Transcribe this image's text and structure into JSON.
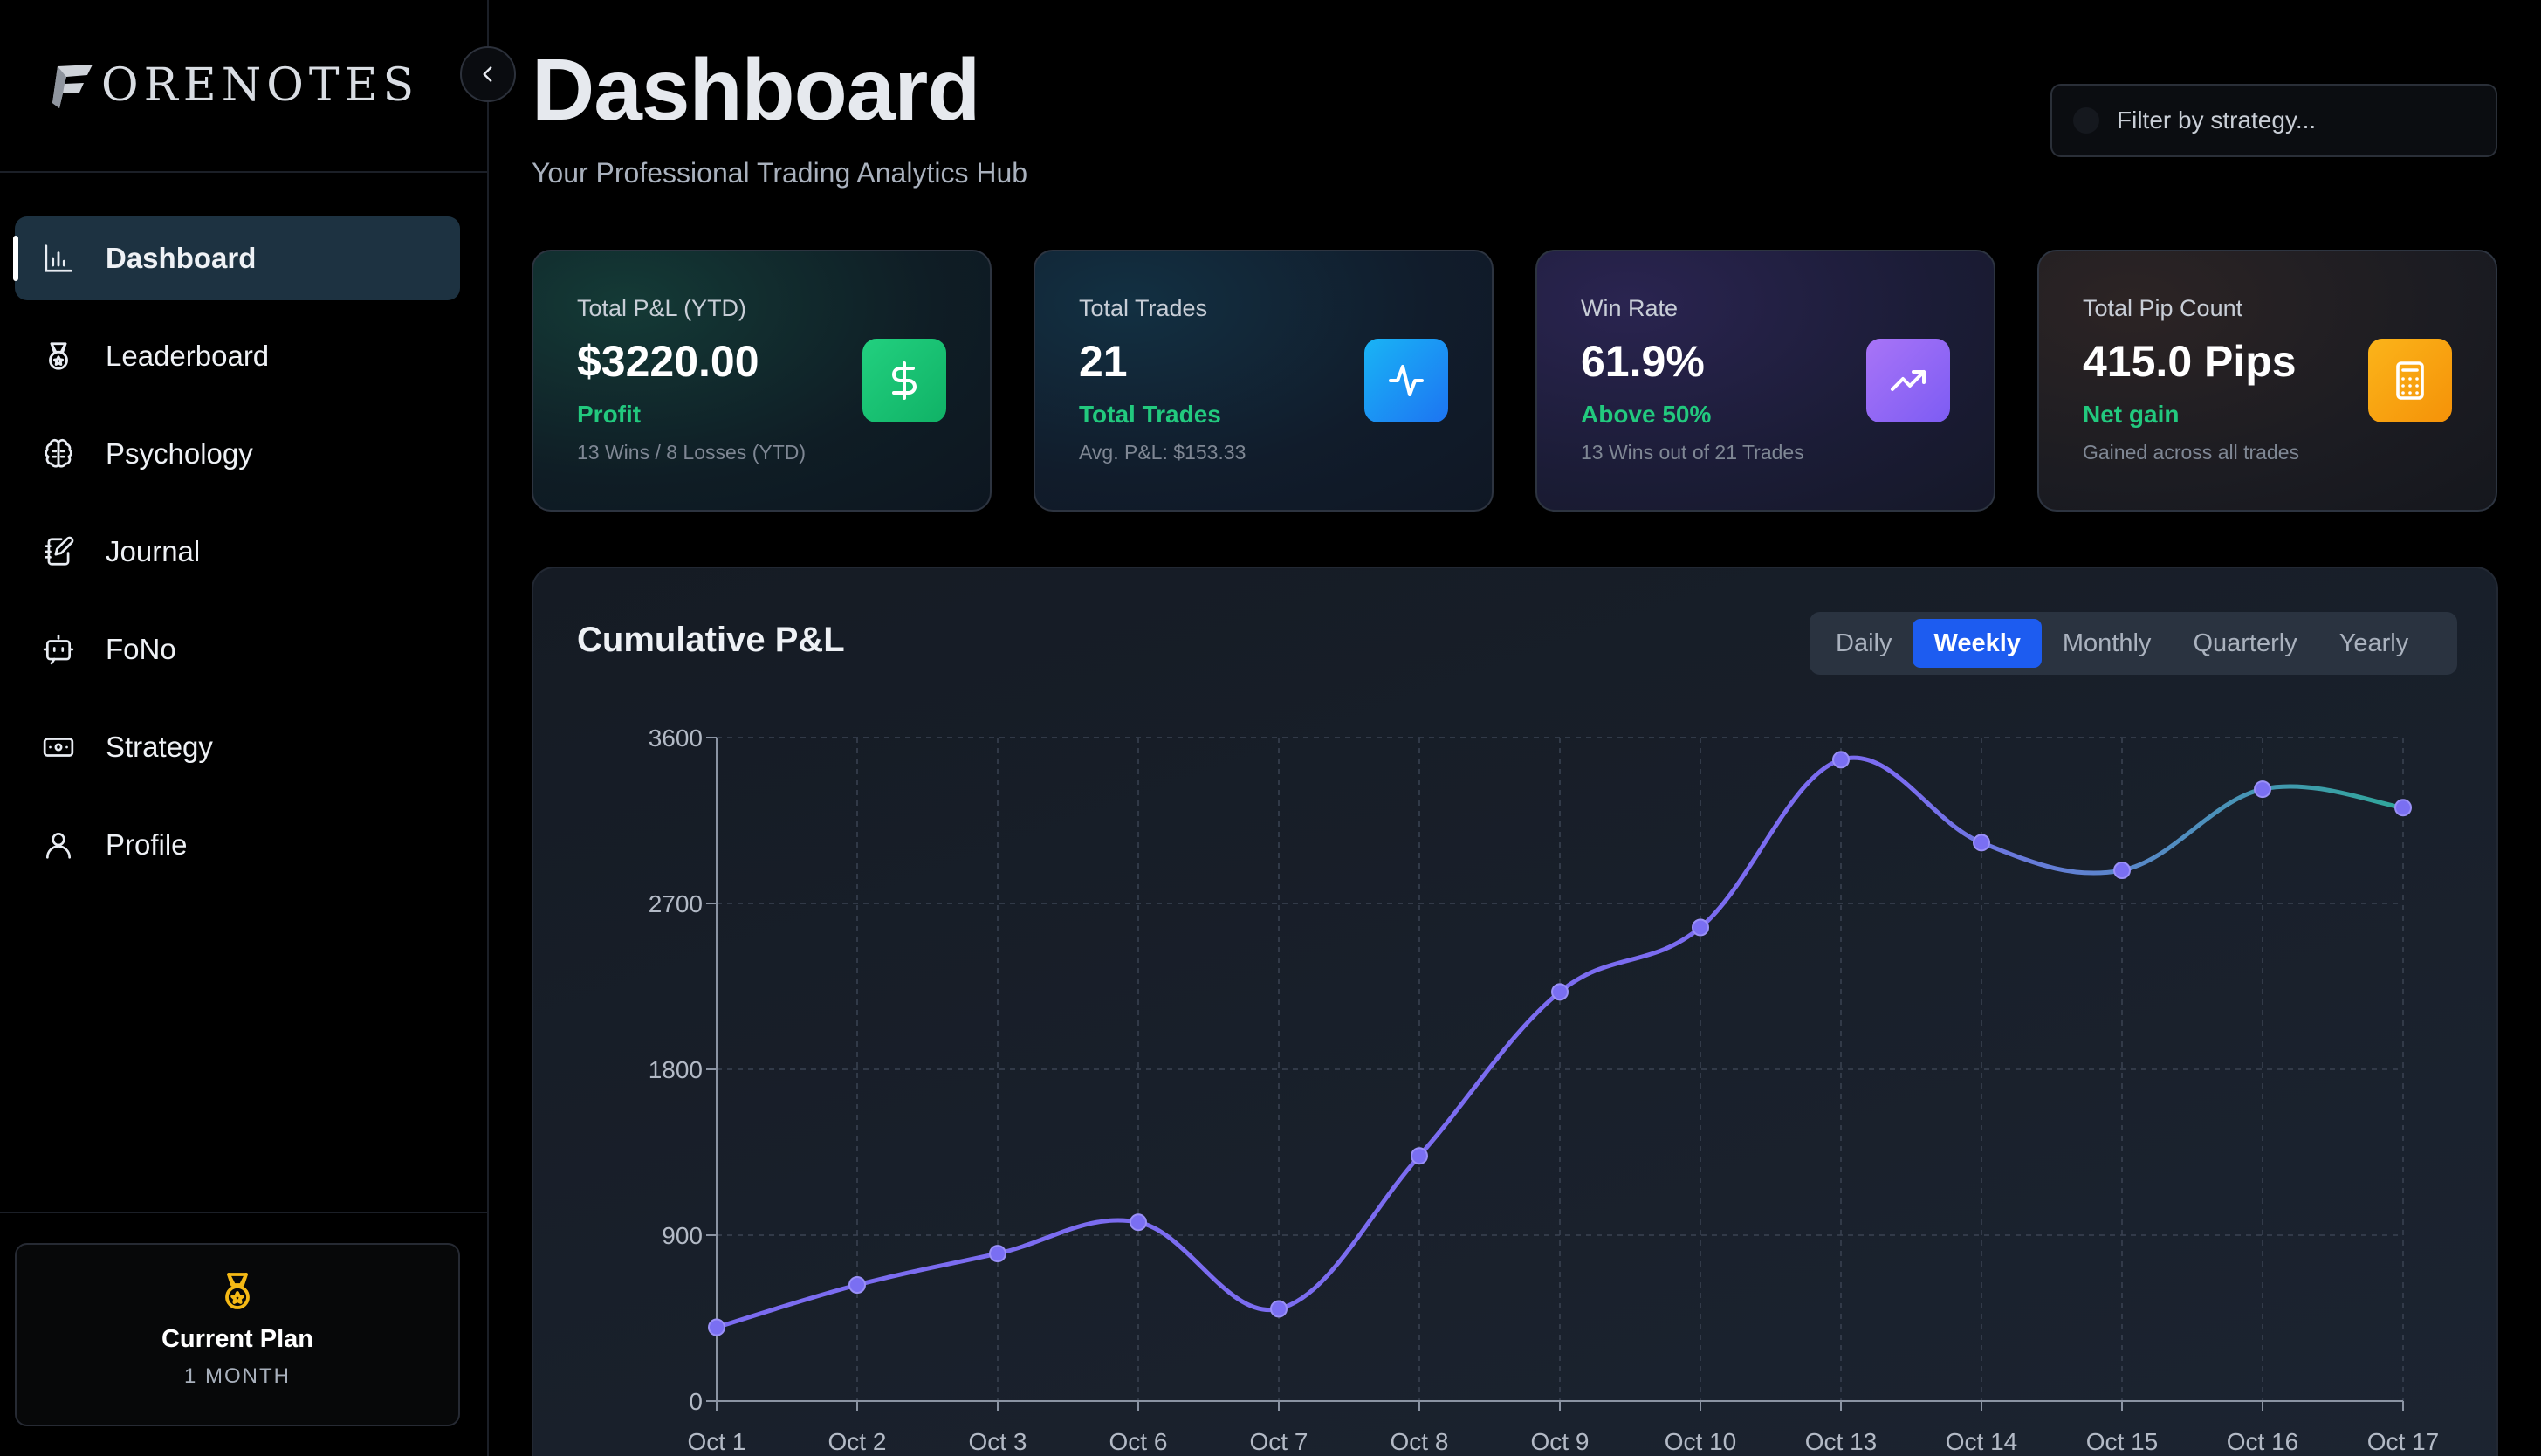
{
  "app": {
    "logo_text": "ORENOTES",
    "logo_icon": "f-logo-icon"
  },
  "sidebar": {
    "items": [
      {
        "label": "Dashboard",
        "icon": "bar-chart-icon",
        "active": true
      },
      {
        "label": "Leaderboard",
        "icon": "medal-icon",
        "active": false
      },
      {
        "label": "Psychology",
        "icon": "brain-icon",
        "active": false
      },
      {
        "label": "Journal",
        "icon": "journal-edit-icon",
        "active": false
      },
      {
        "label": "FoNo",
        "icon": "bot-icon",
        "active": false
      },
      {
        "label": "Strategy",
        "icon": "banknote-icon",
        "active": false
      },
      {
        "label": "Profile",
        "icon": "user-icon",
        "active": false
      }
    ],
    "plan": {
      "title": "Current Plan",
      "subtitle": "1 MONTH",
      "icon": "medal-icon",
      "icon_color": "#f5b915"
    }
  },
  "header": {
    "title": "Dashboard",
    "subtitle": "Your Professional Trading Analytics Hub"
  },
  "filter": {
    "placeholder": "Filter by strategy...",
    "value": ""
  },
  "stats": [
    {
      "label": "Total P&L (YTD)",
      "value": "$3220.00",
      "note": "Profit",
      "foot": "13 Wins / 8 Losses (YTD)",
      "icon": "dollar-icon",
      "color": "#1ec373"
    },
    {
      "label": "Total Trades",
      "value": "21",
      "note": "Total Trades",
      "foot": "Avg. P&L: $153.33",
      "icon": "activity-icon",
      "color": "#1a93f4"
    },
    {
      "label": "Win Rate",
      "value": "61.9%",
      "note": "Above 50%",
      "foot": "13 Wins out of 21 Trades",
      "icon": "trending-up-icon",
      "color": "#9068f5"
    },
    {
      "label": "Total Pip Count",
      "value": "415.0 Pips",
      "note": "Net gain",
      "foot": "Gained across all trades",
      "icon": "calculator-icon",
      "color": "#f7a20f"
    }
  ],
  "chart": {
    "title": "Cumulative P&L",
    "tabs": [
      {
        "label": "Daily",
        "active": false
      },
      {
        "label": "Weekly",
        "active": true
      },
      {
        "label": "Monthly",
        "active": false
      },
      {
        "label": "Quarterly",
        "active": false
      },
      {
        "label": "Yearly",
        "active": false
      }
    ]
  },
  "chart_data": {
    "type": "line",
    "title": "Cumulative P&L",
    "xlabel": "",
    "ylabel": "",
    "categories": [
      "Oct 1",
      "Oct 2",
      "Oct 3",
      "Oct 6",
      "Oct 7",
      "Oct 8",
      "Oct 9",
      "Oct 10",
      "Oct 13",
      "Oct 14",
      "Oct 15",
      "Oct 16",
      "Oct 17"
    ],
    "values": [
      400,
      630,
      800,
      970,
      500,
      1330,
      2220,
      2570,
      3480,
      3030,
      2880,
      3320,
      3220
    ],
    "yticks": [
      0,
      900,
      1800,
      2700,
      3600
    ],
    "ylim": [
      0,
      3600
    ],
    "grid": true,
    "line_color_start": "#7b6cf0",
    "line_color_end": "#2fa79a",
    "point_color": "#7a6ff2"
  }
}
